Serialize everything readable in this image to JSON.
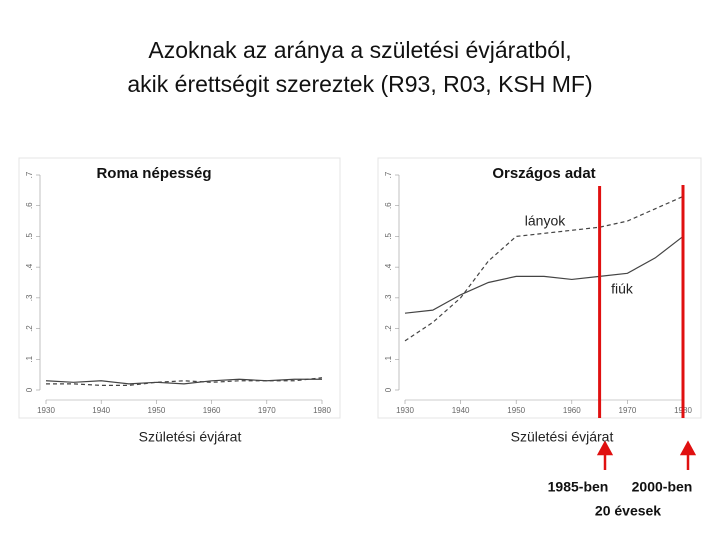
{
  "title": [
    "Azoknak az aránya a születési évjáratból,",
    "akik érettségit szereztek (R93, R03, KSH MF)"
  ],
  "chart_data": [
    {
      "type": "line",
      "title": "Roma népesség",
      "xlabel": "Születési évjárat",
      "x": [
        1930,
        1935,
        1940,
        1945,
        1950,
        1955,
        1960,
        1965,
        1970,
        1975,
        1980
      ],
      "series": [
        {
          "color": "#444444",
          "dash": false,
          "values": [
            0.03,
            0.025,
            0.03,
            0.02,
            0.025,
            0.02,
            0.03,
            0.035,
            0.03,
            0.035,
            0.035
          ]
        },
        {
          "color": "#444444",
          "dash": true,
          "values": [
            0.02,
            0.02,
            0.015,
            0.015,
            0.025,
            0.03,
            0.025,
            0.03,
            0.03,
            0.03,
            0.04
          ]
        }
      ],
      "xlim": [
        1930,
        1980
      ],
      "xticks": [
        1930,
        1940,
        1950,
        1960,
        1970,
        1980
      ],
      "ylim": [
        0,
        0.7
      ],
      "yticks": [
        {
          "value": 0,
          "label": "0"
        },
        {
          "value": 0.1,
          "label": ".1"
        },
        {
          "value": 0.2,
          "label": ".2"
        },
        {
          "value": 0.3,
          "label": ".3"
        },
        {
          "value": 0.4,
          "label": ".4"
        },
        {
          "value": 0.5,
          "label": ".5"
        },
        {
          "value": 0.6,
          "label": ".6"
        },
        {
          "value": 0.7,
          "label": ".7"
        }
      ]
    },
    {
      "type": "line",
      "title": "Országos adat",
      "xlabel": "Születési évjárat",
      "x": [
        1930,
        1935,
        1940,
        1945,
        1950,
        1955,
        1960,
        1965,
        1970,
        1975,
        1980
      ],
      "series": [
        {
          "name": "lányok",
          "color": "#444444",
          "dash": true,
          "values": [
            0.16,
            0.22,
            0.3,
            0.42,
            0.5,
            0.51,
            0.52,
            0.53,
            0.55,
            0.59,
            0.63
          ]
        },
        {
          "name": "fiúk",
          "color": "#444444",
          "dash": false,
          "values": [
            0.25,
            0.26,
            0.31,
            0.35,
            0.37,
            0.37,
            0.36,
            0.37,
            0.38,
            0.43,
            0.5
          ]
        }
      ],
      "vlines": [
        1965,
        1980
      ],
      "vline_color": "#e01010",
      "xlim": [
        1930,
        1980
      ],
      "xticks": [
        1930,
        1940,
        1950,
        1960,
        1970,
        1980
      ],
      "ylim": [
        0,
        0.7
      ],
      "yticks": [
        {
          "value": 0,
          "label": "0"
        },
        {
          "value": 0.1,
          "label": ".1"
        },
        {
          "value": 0.2,
          "label": ".2"
        },
        {
          "value": 0.3,
          "label": ".3"
        },
        {
          "value": 0.4,
          "label": ".4"
        },
        {
          "value": 0.5,
          "label": ".5"
        },
        {
          "value": 0.6,
          "label": ".6"
        },
        {
          "value": 0.7,
          "label": ".7"
        }
      ]
    }
  ],
  "footer": {
    "left": "1985-ben",
    "right": "2000-ben",
    "bottom": "20 évesek"
  }
}
